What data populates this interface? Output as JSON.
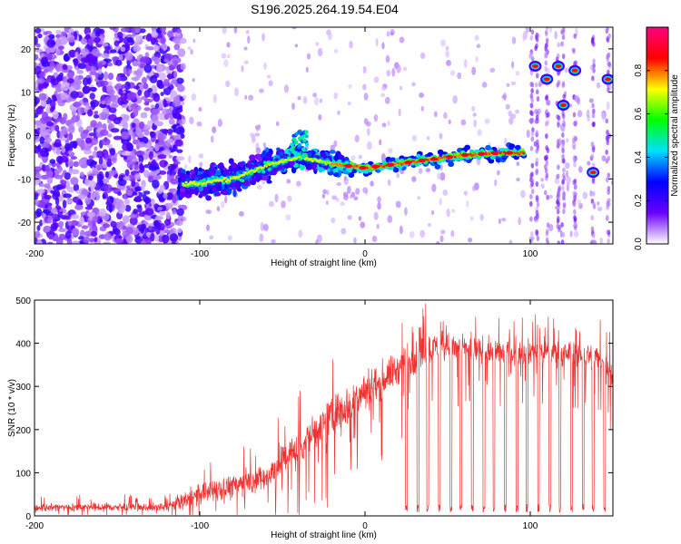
{
  "title": "S196.2025.264.19.54.E04",
  "chart_data": [
    {
      "type": "heatmap",
      "title": "S196.2025.264.19.54.E04",
      "xlabel": "Height of straight line (km)",
      "ylabel": "Frequency (Hz)",
      "xlim": [
        -200,
        150
      ],
      "ylim": [
        -25,
        25
      ],
      "xticks": [
        -200,
        -100,
        0,
        100
      ],
      "xtick_labels": [
        "-200",
        "-100",
        "0",
        "100"
      ],
      "yticks": [
        20,
        10,
        0,
        -10,
        -20
      ],
      "ytick_labels": [
        "20",
        "10",
        "0",
        "-10",
        "-20"
      ],
      "colorbar": {
        "label": "Normalized spectral amplitude",
        "range": [
          0,
          1
        ],
        "ticks": [
          0.0,
          0.2,
          0.4,
          0.6,
          0.8
        ],
        "tick_labels": [
          "0.0",
          "0.2",
          "0.4",
          "0.6",
          "0.8"
        ],
        "colors": [
          "#ffffff",
          "#6a00ff",
          "#0000ff",
          "#00e0ff",
          "#00ff00",
          "#ffff00",
          "#ff0000",
          "#ff0080"
        ]
      },
      "track": {
        "x": [
          -120,
          -100,
          -80,
          -60,
          -50,
          -40,
          -20,
          0,
          20,
          40,
          60,
          80,
          95
        ],
        "freq_hz": [
          -11,
          -11,
          -10,
          -7,
          -6,
          -5,
          -6.5,
          -7.5,
          -6.5,
          -5.5,
          -4.5,
          -4,
          -4
        ]
      },
      "high_features": [
        {
          "x": 103,
          "freq_hz": 16
        },
        {
          "x": 110,
          "freq_hz": 13
        },
        {
          "x": 117,
          "freq_hz": 16
        },
        {
          "x": 120,
          "freq_hz": 7
        },
        {
          "x": 127,
          "freq_hz": 15
        },
        {
          "x": 138,
          "freq_hz": -8.5
        },
        {
          "x": 147,
          "freq_hz": 13
        }
      ]
    },
    {
      "type": "line",
      "xlabel": "Height of straight line (km)",
      "ylabel": "SNR (10 * v/v)",
      "xlim": [
        -200,
        150
      ],
      "ylim": [
        0,
        500
      ],
      "xticks": [
        -200,
        -100,
        0,
        100
      ],
      "xtick_labels": [
        "-200",
        "-100",
        "0",
        "100"
      ],
      "yticks": [
        0,
        100,
        200,
        300,
        400,
        500
      ],
      "ytick_labels": [
        "0",
        "100",
        "200",
        "300",
        "400",
        "500"
      ],
      "color": "#ee3333",
      "envelope": {
        "x": [
          -200,
          -120,
          -110,
          -100,
          -80,
          -60,
          -40,
          -20,
          0,
          20,
          40,
          60,
          80,
          100,
          120,
          140,
          150
        ],
        "center": [
          20,
          20,
          35,
          50,
          70,
          90,
          160,
          230,
          290,
          340,
          390,
          390,
          380,
          380,
          380,
          370,
          330
        ],
        "spread": [
          15,
          15,
          30,
          40,
          45,
          50,
          70,
          70,
          70,
          60,
          55,
          45,
          45,
          45,
          45,
          45,
          60
        ]
      },
      "dropout_x": [
        25,
        32,
        38,
        45,
        52,
        58,
        65,
        72,
        78,
        85,
        92,
        98,
        105,
        112,
        118,
        125,
        132,
        138,
        145
      ]
    }
  ]
}
